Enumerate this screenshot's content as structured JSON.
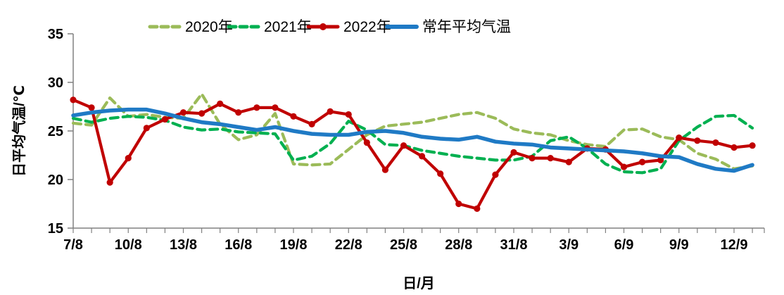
{
  "chart_data": {
    "type": "line",
    "title": "",
    "xlabel": "日/月",
    "ylabel": "日平均气温/℃",
    "ylim": [
      15,
      35
    ],
    "ytick_step": 5,
    "yticks": [
      15,
      20,
      25,
      30,
      35
    ],
    "grid": false,
    "legend_position": "top",
    "x_label_every_n_days": 3,
    "x": [
      "7/8",
      "8/8",
      "9/8",
      "10/8",
      "11/8",
      "12/8",
      "13/8",
      "14/8",
      "15/8",
      "16/8",
      "17/8",
      "18/8",
      "19/8",
      "20/8",
      "21/8",
      "22/8",
      "23/8",
      "24/8",
      "25/8",
      "26/8",
      "27/8",
      "28/8",
      "29/8",
      "30/8",
      "31/8",
      "1/9",
      "2/9",
      "3/9",
      "4/9",
      "5/9",
      "6/9",
      "7/9",
      "8/9",
      "9/9",
      "10/9",
      "11/9",
      "12/9",
      "13/9"
    ],
    "x_labeled_ticks": [
      "7/8",
      "10/8",
      "13/8",
      "16/8",
      "19/8",
      "22/8",
      "25/8",
      "28/8",
      "31/8",
      "3/9",
      "6/9",
      "9/9",
      "12/9"
    ],
    "series": [
      {
        "name": "2020年",
        "color": "#9bbb59",
        "style": "dashed",
        "marker": "none",
        "values": [
          25.8,
          25.6,
          28.4,
          26.5,
          26.7,
          26.4,
          26.3,
          28.8,
          25.7,
          24.1,
          24.6,
          26.8,
          21.6,
          21.5,
          21.6,
          23.1,
          24.6,
          25.5,
          25.7,
          25.9,
          26.3,
          26.7,
          26.9,
          26.3,
          25.2,
          24.8,
          24.6,
          24.0,
          23.6,
          23.4,
          25.1,
          25.2,
          24.4,
          24.1,
          22.7,
          22.1,
          21.1,
          21.4
        ]
      },
      {
        "name": "2021年",
        "color": "#00b050",
        "style": "dashed",
        "marker": "none",
        "values": [
          26.3,
          25.9,
          26.3,
          26.5,
          26.4,
          26.1,
          25.4,
          25.1,
          25.2,
          24.9,
          24.8,
          24.7,
          22.0,
          22.4,
          23.7,
          26.0,
          25.1,
          23.6,
          23.5,
          23.0,
          22.7,
          22.4,
          22.2,
          22.0,
          22.0,
          22.4,
          24.0,
          24.4,
          23.2,
          21.6,
          20.8,
          20.7,
          21.1,
          24.0,
          25.4,
          26.5,
          26.6,
          25.3
        ]
      },
      {
        "name": "2022年",
        "color": "#c00000",
        "style": "solid",
        "marker": "circle",
        "values": [
          28.2,
          27.4,
          19.7,
          22.2,
          25.3,
          26.2,
          26.9,
          26.8,
          27.8,
          26.9,
          27.4,
          27.4,
          26.5,
          25.7,
          27.0,
          26.7,
          23.8,
          21.0,
          23.5,
          22.4,
          20.6,
          17.5,
          17.0,
          20.5,
          22.8,
          22.2,
          22.2,
          21.8,
          23.2,
          23.1,
          21.3,
          21.8,
          22.0,
          24.3,
          24.0,
          23.8,
          23.3,
          23.5
        ]
      },
      {
        "name": "常年平均气温",
        "color": "#1f7ac5",
        "style": "solid",
        "marker": "none",
        "values": [
          26.6,
          26.9,
          27.1,
          27.2,
          27.2,
          26.8,
          26.3,
          25.9,
          25.7,
          25.4,
          25.1,
          25.4,
          25.0,
          24.7,
          24.6,
          24.6,
          24.9,
          25.0,
          24.8,
          24.4,
          24.2,
          24.1,
          24.4,
          23.9,
          23.7,
          23.6,
          23.3,
          23.2,
          23.1,
          23.0,
          22.9,
          22.7,
          22.4,
          22.3,
          21.6,
          21.1,
          20.9,
          21.5
        ]
      }
    ],
    "axis_color": "#808080",
    "tick_label_color": "#000000"
  }
}
